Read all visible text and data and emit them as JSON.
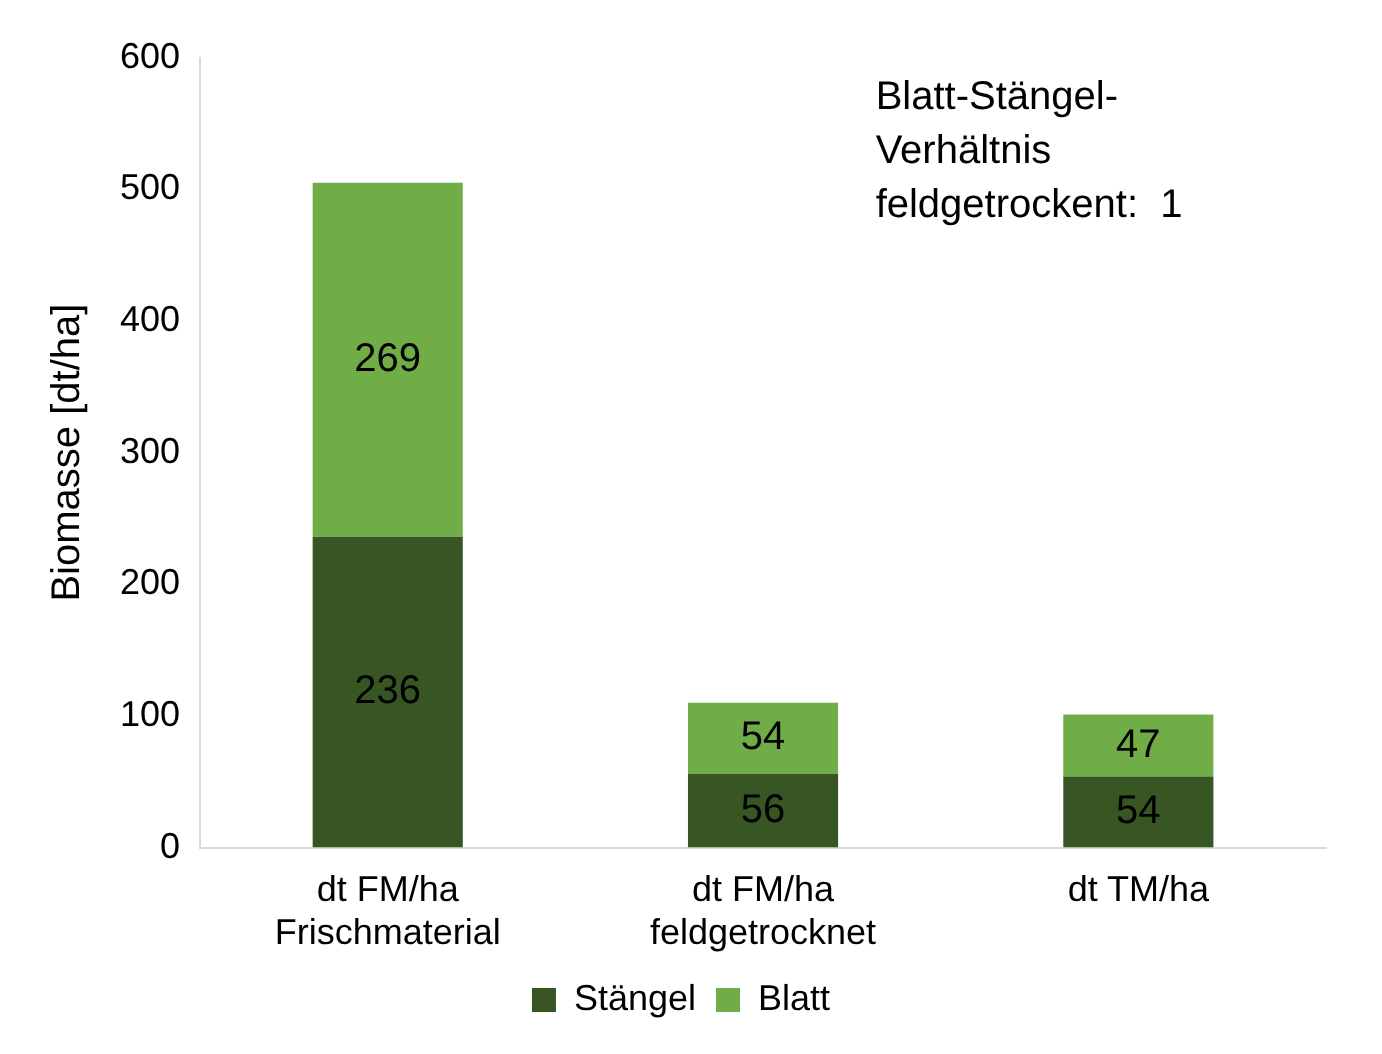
{
  "chart_data": {
    "type": "bar",
    "ylabel": "Biomasse [dt/ha]",
    "categories": [
      "dt FM/ha\nFrischmaterial",
      "dt FM/ha\nfeldgetrocknet",
      "dt TM/ha"
    ],
    "stacked": true,
    "series": [
      {
        "name": "Stängel",
        "color": "#375623",
        "values": [
          236,
          56,
          54
        ]
      },
      {
        "name": "Blatt",
        "color": "#70ad47",
        "values": [
          269,
          54,
          47
        ]
      }
    ],
    "ylim": [
      0,
      600
    ],
    "yticks": [
      0,
      100,
      200,
      300,
      400,
      500,
      600
    ],
    "grid": false,
    "legend": "bottom",
    "data_labels": true,
    "annotations": [
      "Blatt-Stängel-\nVerhältnis\nfeldgetrockent:  1"
    ]
  }
}
